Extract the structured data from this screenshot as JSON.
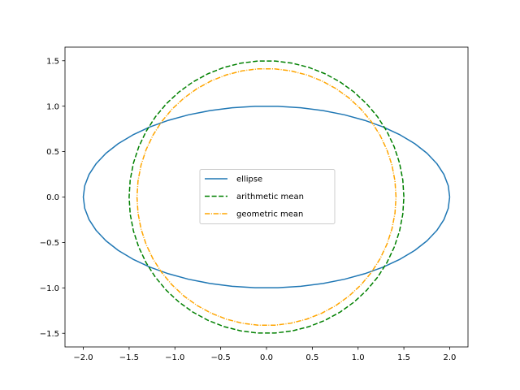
{
  "chart_data": {
    "type": "line",
    "title": "",
    "xlabel": "",
    "ylabel": "",
    "xlim": [
      -2.2,
      2.2
    ],
    "ylim": [
      -1.65,
      1.65
    ],
    "xticks": [
      -2.0,
      -1.5,
      -1.0,
      -0.5,
      0.0,
      0.5,
      1.0,
      1.5,
      2.0
    ],
    "xtick_labels": [
      "−2.0",
      "−1.5",
      "−1.0",
      "−0.5",
      "0.0",
      "0.5",
      "1.0",
      "1.5",
      "2.0"
    ],
    "yticks": [
      -1.5,
      -1.0,
      -0.5,
      0.0,
      0.5,
      1.0,
      1.5
    ],
    "ytick_labels": [
      "−1.5",
      "−1.0",
      "−0.5",
      "0.0",
      "0.5",
      "1.0",
      "1.5"
    ],
    "grid": false,
    "legend_position": "center",
    "series": [
      {
        "name": "ellipse",
        "shape": "ellipse",
        "semi_axis_x": 2.0,
        "semi_axis_y": 1.0,
        "color": "#1f77b4",
        "line_style": "solid"
      },
      {
        "name": "arithmetic mean",
        "shape": "circle",
        "radius": 1.5,
        "color": "#008000",
        "line_style": "dashed"
      },
      {
        "name": "geometric mean",
        "shape": "circle",
        "radius": 1.414,
        "color": "#ffa500",
        "line_style": "dashdot"
      }
    ]
  }
}
